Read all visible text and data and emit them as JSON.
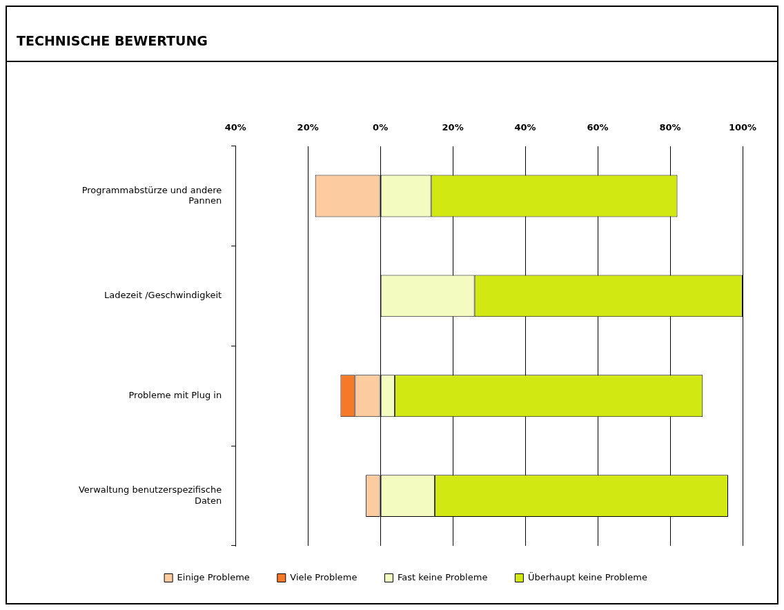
{
  "chart_data": {
    "type": "bar",
    "title": "TECHNISCHE BEWERTUNG",
    "orientation": "horizontal",
    "stacked": true,
    "categories": [
      "Programmabstürze und andere Pannen",
      "Ladezeit /Geschwindigkeit",
      "Probleme mit Plug in",
      "Verwaltung benutzerspezifische Daten"
    ],
    "series": [
      {
        "name": "Einige Probleme",
        "color": "#fdcba0",
        "values": [
          -18,
          0,
          -7,
          -4
        ]
      },
      {
        "name": "Viele Probleme",
        "color": "#f47a2a",
        "values": [
          0,
          0,
          -4,
          0
        ]
      },
      {
        "name": "Fast keine Probleme",
        "color": "#f3fbc0",
        "values": [
          14,
          26,
          4,
          15
        ]
      },
      {
        "name": "Überhaupt keine Probleme",
        "color": "#d2e812",
        "values": [
          68,
          74,
          85,
          81
        ]
      }
    ],
    "xlim": [
      -40,
      100
    ],
    "xticks": [
      {
        "value": -40,
        "label": "40%"
      },
      {
        "value": -20,
        "label": "20%"
      },
      {
        "value": 0,
        "label": "0%"
      },
      {
        "value": 20,
        "label": "20%"
      },
      {
        "value": 40,
        "label": "40%"
      },
      {
        "value": 60,
        "label": "60%"
      },
      {
        "value": 80,
        "label": "80%"
      },
      {
        "value": 100,
        "label": "100%"
      }
    ],
    "grid": "x",
    "legend": "bottom"
  }
}
